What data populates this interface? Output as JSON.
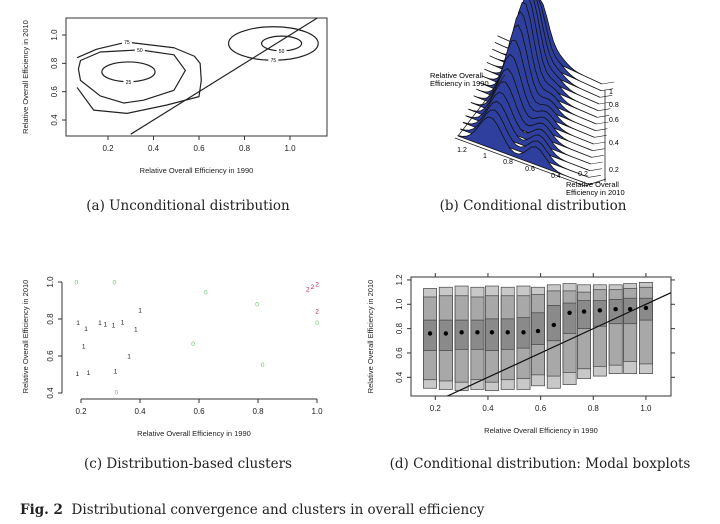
{
  "figure": {
    "label": "Fig. 2",
    "caption": "Distributional convergence and clusters in overall efficiency"
  },
  "panels": {
    "a": {
      "caption": "(a) Unconditional distribution"
    },
    "b": {
      "caption": "(b) Conditional distribution"
    },
    "c": {
      "caption": "(c) Distribution-based clusters"
    },
    "d": {
      "caption": "(d) Conditional distribution: Modal boxplots"
    }
  },
  "chart_data": [
    {
      "type": "contour",
      "panel": "a",
      "xlabel": "Relative Overall Efficiency in 1990",
      "ylabel": "Relative Overall Efficiency in 2010",
      "xticks": [
        "0.2",
        "0.4",
        "0.6",
        "0.8",
        "1.0"
      ],
      "yticks": [
        "0.4",
        "0.6",
        "0.8",
        "1.0"
      ],
      "xlim": [
        0.03,
        1.15
      ],
      "ylim": [
        0.29,
        1.12
      ],
      "diagonal": "y=x",
      "contours": [
        {
          "level": "75",
          "points": [
            [
              0.064,
              0.84
            ],
            [
              0.15,
              0.9
            ],
            [
              0.283,
              0.95
            ],
            [
              0.49,
              0.91
            ],
            [
              0.58,
              0.85
            ],
            [
              0.605,
              0.8
            ],
            [
              0.61,
              0.68
            ],
            [
              0.6,
              0.565
            ],
            [
              0.459,
              0.506
            ],
            [
              0.283,
              0.447
            ],
            [
              0.137,
              0.47
            ],
            [
              0.064,
              0.63
            ]
          ],
          "closed": false
        },
        {
          "level": "50",
          "points": [
            [
              0.079,
              0.82
            ],
            [
              0.166,
              0.88
            ],
            [
              0.34,
              0.895
            ],
            [
              0.49,
              0.86
            ],
            [
              0.54,
              0.75
            ],
            [
              0.49,
              0.61
            ],
            [
              0.356,
              0.54
            ],
            [
              0.27,
              0.52
            ],
            [
              0.166,
              0.57
            ],
            [
              0.079,
              0.68
            ],
            [
              0.07,
              0.76
            ]
          ],
          "closed": true
        },
        {
          "level": "25",
          "ellipse": [
            0.29,
            0.74,
            0.117,
            0.07
          ]
        },
        {
          "level": "50",
          "ellipse": [
            0.963,
            0.94,
            0.088,
            0.052
          ]
        },
        {
          "level": "75",
          "ellipse": [
            0.927,
            0.94,
            0.197,
            0.118
          ]
        }
      ]
    },
    {
      "type": "ridgeline-3d",
      "panel": "b",
      "xlabel": "Relative Overall Efficiency in 1990",
      "ylabel": "Relative Overall Efficiency in 2010",
      "xticks": [
        "1.2",
        "1",
        "0.8",
        "0.6",
        "0.4",
        "0.2"
      ],
      "yticks": [
        "1",
        "0.8",
        "0.6",
        "0.4",
        "0.2"
      ],
      "fill_color": "#2e3f9e"
    },
    {
      "type": "scatter",
      "panel": "c",
      "xlabel": "Relative Overall Efficiency in 1990",
      "ylabel": "Relative Overall Efficiency in 2010",
      "xticks": [
        "0.2",
        "0.4",
        "0.6",
        "0.8",
        "1.0"
      ],
      "yticks": [
        "0.4",
        "0.6",
        "0.8",
        "1.0"
      ],
      "xlim": [
        0.17,
        1.0
      ],
      "ylim": [
        0.38,
        1.02
      ],
      "cluster_colors": {
        "0": "#6cc06c",
        "1": "#222222",
        "2": "#c2185b"
      },
      "points": [
        {
          "x": 0.184,
          "y": 1.0,
          "cluster": "0"
        },
        {
          "x": 0.313,
          "y": 1.0,
          "cluster": "0"
        },
        {
          "x": 0.623,
          "y": 0.947,
          "cluster": "0"
        },
        {
          "x": 0.797,
          "y": 0.88,
          "cluster": "0"
        },
        {
          "x": 1.0,
          "y": 0.78,
          "cluster": "0"
        },
        {
          "x": 0.58,
          "y": 0.667,
          "cluster": "0"
        },
        {
          "x": 0.816,
          "y": 0.555,
          "cluster": "0"
        },
        {
          "x": 0.32,
          "y": 0.405,
          "cluster": "0"
        },
        {
          "x": 1.0,
          "y": 0.99,
          "cluster": "2"
        },
        {
          "x": 1.0,
          "y": 0.976,
          "cluster": "2"
        },
        {
          "x": 1.0,
          "y": 0.962,
          "cluster": "2"
        },
        {
          "x": 1.0,
          "y": 0.844,
          "cluster": "2"
        },
        {
          "x": 0.4,
          "y": 0.85,
          "cluster": "1"
        },
        {
          "x": 0.19,
          "y": 0.78,
          "cluster": "1"
        },
        {
          "x": 0.186,
          "y": 0.75,
          "cluster": "1"
        },
        {
          "x": 0.264,
          "y": 0.78,
          "cluster": "1"
        },
        {
          "x": 0.267,
          "y": 0.773,
          "cluster": "1"
        },
        {
          "x": 0.279,
          "y": 0.767,
          "cluster": "1"
        },
        {
          "x": 0.325,
          "y": 0.783,
          "cluster": "1"
        },
        {
          "x": 0.386,
          "y": 0.747,
          "cluster": "1"
        },
        {
          "x": 0.209,
          "y": 0.655,
          "cluster": "1"
        },
        {
          "x": 0.363,
          "y": 0.6,
          "cluster": "1"
        },
        {
          "x": 0.188,
          "y": 0.505,
          "cluster": "1"
        },
        {
          "x": 0.225,
          "y": 0.51,
          "cluster": "1"
        },
        {
          "x": 0.317,
          "y": 0.52,
          "cluster": "1"
        }
      ]
    },
    {
      "type": "boxplot",
      "panel": "d",
      "xlabel": "Relative Overall Efficiency in 1990",
      "ylabel": "Relative Overall Efficiency in 2010",
      "xticks": [
        "0.2",
        "0.4",
        "0.6",
        "0.8",
        "1.0"
      ],
      "yticks": [
        "0.4",
        "0.6",
        "0.8",
        "1.0",
        "1.2"
      ],
      "xlim": [
        0.09,
        1.09
      ],
      "ylim": [
        0.24,
        1.23
      ],
      "diagonal": "y=x",
      "box_colors": [
        "#c8c8c8",
        "#a8a8a8",
        "#8a8a8a"
      ],
      "columns": [
        {
          "x": 0.18,
          "q": [
            0.31,
            0.38,
            0.62,
            0.87,
            1.06,
            1.13
          ],
          "mode": 0.76
        },
        {
          "x": 0.24,
          "q": [
            0.3,
            0.37,
            0.62,
            0.87,
            1.07,
            1.14
          ],
          "mode": 0.76
        },
        {
          "x": 0.3,
          "q": [
            0.29,
            0.36,
            0.63,
            0.87,
            1.07,
            1.15
          ],
          "mode": 0.77
        },
        {
          "x": 0.36,
          "q": [
            0.3,
            0.38,
            0.63,
            0.87,
            1.06,
            1.14
          ],
          "mode": 0.77
        },
        {
          "x": 0.415,
          "q": [
            0.29,
            0.36,
            0.62,
            0.88,
            1.07,
            1.15
          ],
          "mode": 0.77
        },
        {
          "x": 0.475,
          "q": [
            0.3,
            0.38,
            0.63,
            0.88,
            1.07,
            1.14
          ],
          "mode": 0.77
        },
        {
          "x": 0.535,
          "q": [
            0.3,
            0.39,
            0.64,
            0.89,
            1.07,
            1.15
          ],
          "mode": 0.77
        },
        {
          "x": 0.59,
          "q": [
            0.33,
            0.42,
            0.67,
            0.93,
            1.08,
            1.14
          ],
          "mode": 0.78
        },
        {
          "x": 0.65,
          "q": [
            0.31,
            0.41,
            0.7,
            0.99,
            1.11,
            1.16
          ],
          "mode": 0.83
        },
        {
          "x": 0.71,
          "q": [
            0.34,
            0.44,
            0.76,
            1.01,
            1.11,
            1.17
          ],
          "mode": 0.93
        },
        {
          "x": 0.765,
          "q": [
            0.39,
            0.47,
            0.8,
            1.03,
            1.1,
            1.16
          ],
          "mode": 0.94
        },
        {
          "x": 0.825,
          "q": [
            0.41,
            0.49,
            0.82,
            1.03,
            1.12,
            1.16
          ],
          "mode": 0.95
        },
        {
          "x": 0.885,
          "q": [
            0.43,
            0.5,
            0.84,
            1.04,
            1.12,
            1.16
          ],
          "mode": 0.96
        },
        {
          "x": 0.94,
          "q": [
            0.43,
            0.53,
            0.84,
            1.05,
            1.13,
            1.17
          ],
          "mode": 0.96
        },
        {
          "x": 1.0,
          "q": [
            0.43,
            0.51,
            0.87,
            1.05,
            1.14,
            1.18
          ],
          "mode": 0.97
        }
      ]
    }
  ]
}
